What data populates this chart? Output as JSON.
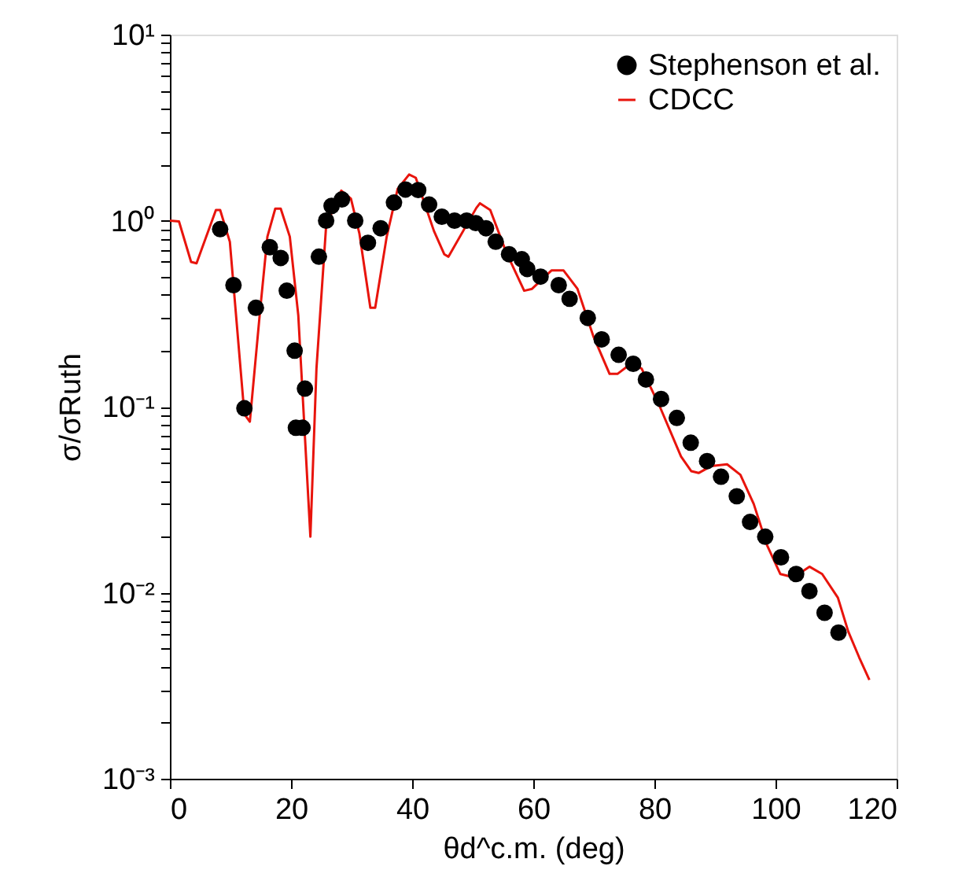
{
  "chart_data": {
    "type": "scatter",
    "xlabel": "θd^c.m. (deg)",
    "ylabel": "σ/σRuth",
    "log": "y",
    "legend": "top right",
    "grid": false,
    "xlim": [
      0,
      120
    ],
    "xticks": [
      0,
      20,
      40,
      60,
      80,
      100,
      120
    ],
    "ylim": [
      0.001,
      10
    ],
    "yticks": [
      {
        "value": 0.001,
        "label": "10⁻³"
      },
      {
        "value": 0.002,
        "label": null
      },
      {
        "value": 0.003,
        "label": null
      },
      {
        "value": 0.004,
        "label": null
      },
      {
        "value": 0.005,
        "label": null
      },
      {
        "value": 0.006,
        "label": null
      },
      {
        "value": 0.007,
        "label": null
      },
      {
        "value": 0.008,
        "label": null
      },
      {
        "value": 0.009,
        "label": null
      },
      {
        "value": 0.01,
        "label": "10⁻²"
      },
      {
        "value": 0.02,
        "label": null
      },
      {
        "value": 0.03,
        "label": null
      },
      {
        "value": 0.04,
        "label": null
      },
      {
        "value": 0.05,
        "label": null
      },
      {
        "value": 0.06,
        "label": null
      },
      {
        "value": 0.07,
        "label": null
      },
      {
        "value": 0.08,
        "label": null
      },
      {
        "value": 0.09,
        "label": null
      },
      {
        "value": 0.1,
        "label": "10⁻¹"
      },
      {
        "value": 0.2,
        "label": null
      },
      {
        "value": 0.3,
        "label": null
      },
      {
        "value": 0.4,
        "label": null
      },
      {
        "value": 0.5,
        "label": null
      },
      {
        "value": 0.6,
        "label": null
      },
      {
        "value": 0.7,
        "label": null
      },
      {
        "value": 0.8,
        "label": null
      },
      {
        "value": 0.9,
        "label": null
      },
      {
        "value": 1,
        "label": "10⁰"
      },
      {
        "value": 2,
        "label": null
      },
      {
        "value": 3,
        "label": null
      },
      {
        "value": 4,
        "label": null
      },
      {
        "value": 5,
        "label": null
      },
      {
        "value": 6,
        "label": null
      },
      {
        "value": 7,
        "label": null
      },
      {
        "value": 8,
        "label": null
      },
      {
        "value": 9,
        "label": null
      },
      {
        "value": 10,
        "label": "10¹"
      }
    ],
    "series": [
      {
        "name": "Stephenson et al.",
        "type": "scatter",
        "color": "#000000",
        "marker": "circle",
        "x": [
          8.3,
          10.5,
          12.3,
          14.2,
          16.5,
          18.3,
          19.3,
          20.6,
          20.8,
          21.9,
          22.3,
          24.6,
          25.8,
          26.7,
          28.4,
          30.6,
          32.7,
          34.8,
          37.0,
          38.9,
          41.0,
          42.8,
          44.9,
          47.0,
          49.0,
          50.5,
          52.2,
          53.8,
          56.0,
          58.1,
          59.0,
          61.2,
          64.2,
          66.0,
          69.0,
          71.3,
          74.1,
          76.5,
          78.6,
          81.1,
          83.7,
          86.0,
          88.7,
          91.0,
          93.6,
          95.8,
          98.3,
          100.9,
          103.4,
          105.6,
          108.1,
          110.4
        ],
        "values": [
          0.9,
          0.45,
          0.098,
          0.34,
          0.72,
          0.63,
          0.42,
          0.2,
          0.077,
          0.077,
          0.125,
          0.64,
          1.0,
          1.2,
          1.3,
          1.0,
          0.76,
          0.91,
          1.25,
          1.47,
          1.46,
          1.22,
          1.05,
          1.0,
          1.0,
          0.97,
          0.91,
          0.77,
          0.66,
          0.62,
          0.55,
          0.5,
          0.45,
          0.38,
          0.3,
          0.23,
          0.19,
          0.17,
          0.14,
          0.11,
          0.087,
          0.064,
          0.051,
          0.042,
          0.033,
          0.024,
          0.02,
          0.0155,
          0.0126,
          0.0102,
          0.0078,
          0.0061
        ]
      },
      {
        "name": "CDCC",
        "type": "line",
        "color": "#e8140c",
        "line_style": "solid",
        "marker": "none",
        "x": [
          0,
          1.5,
          3.5,
          4.4,
          7.6,
          8.3,
          9.9,
          12.3,
          13.2,
          14.9,
          16.1,
          17.4,
          18.3,
          19.8,
          21.2,
          23.2,
          24.2,
          25.8,
          28.3,
          29.9,
          31.3,
          33.1,
          33.9,
          35.8,
          37.6,
          39.5,
          40.6,
          43.6,
          45.3,
          46.0,
          50.6,
          51.2,
          52.9,
          55.5,
          58.5,
          59.8,
          63.0,
          65.0,
          67.3,
          69.9,
          72.6,
          73.9,
          76.1,
          77.9,
          80.9,
          84.4,
          86.1,
          87.3,
          89.4,
          92.0,
          94.2,
          96.4,
          98.6,
          100.8,
          102.1,
          103.8,
          105.6,
          107.7,
          110.3,
          112.0,
          113.8,
          115.5
        ],
        "values": [
          1.0,
          0.99,
          0.6,
          0.59,
          1.14,
          1.14,
          0.77,
          0.091,
          0.083,
          0.33,
          0.82,
          1.16,
          1.16,
          0.82,
          0.31,
          0.02,
          0.16,
          0.94,
          1.45,
          1.31,
          0.85,
          0.34,
          0.34,
          0.82,
          1.48,
          1.77,
          1.7,
          0.88,
          0.66,
          0.64,
          1.17,
          1.24,
          1.14,
          0.68,
          0.42,
          0.43,
          0.54,
          0.54,
          0.43,
          0.24,
          0.15,
          0.15,
          0.17,
          0.16,
          0.1,
          0.054,
          0.045,
          0.044,
          0.048,
          0.049,
          0.043,
          0.03,
          0.018,
          0.0126,
          0.0123,
          0.0126,
          0.0138,
          0.0126,
          0.0094,
          0.0062,
          0.0045,
          0.0034
        ]
      }
    ]
  }
}
